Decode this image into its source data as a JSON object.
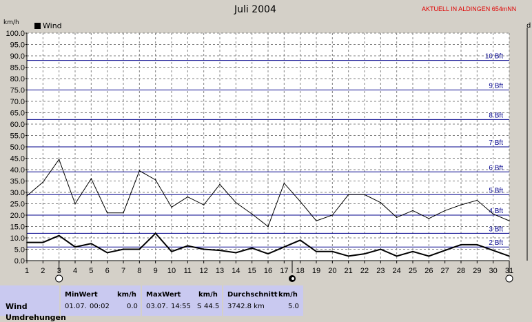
{
  "header": {
    "title": "Juli 2004",
    "station": "AKTUELL IN ALDINGEN 654mNN",
    "unit_left": "km/h",
    "unit_right": "d"
  },
  "chart_data": {
    "type": "line",
    "title": "Juli 2004",
    "ylabel": "km/h",
    "xlabel": "",
    "ylim": [
      0,
      100
    ],
    "y_ticks": [
      "0.0",
      "5.0",
      "10.0",
      "15.0",
      "20.0",
      "25.0",
      "30.0",
      "35.0",
      "40.0",
      "45.0",
      "50.0",
      "55.0",
      "60.0",
      "65.0",
      "70.0",
      "75.0",
      "80.0",
      "85.0",
      "90.0",
      "95.0",
      "100.0"
    ],
    "x": [
      1,
      2,
      3,
      4,
      5,
      6,
      7,
      8,
      9,
      10,
      11,
      12,
      13,
      14,
      15,
      16,
      17,
      18,
      19,
      20,
      21,
      22,
      23,
      24,
      25,
      26,
      27,
      28,
      29,
      30,
      31
    ],
    "grid": true,
    "legend": {
      "position": "top-left",
      "entries": [
        "Wind"
      ]
    },
    "series": [
      {
        "name": "Wind",
        "color": "#000000",
        "values": [
          8,
          8,
          11,
          6,
          7.5,
          3.5,
          5,
          5,
          12,
          4,
          6.5,
          5,
          4.5,
          3.5,
          5.5,
          3,
          6,
          9,
          4,
          4,
          2,
          3,
          5,
          2,
          4,
          2,
          4.5,
          7,
          7,
          4.5,
          2
        ]
      },
      {
        "name": "",
        "color": "#000000",
        "values": [
          28.5,
          34.5,
          44.5,
          25,
          36,
          21,
          21,
          39.5,
          35.5,
          23.5,
          28,
          24.5,
          33.5,
          25.5,
          20.5,
          15,
          34,
          26,
          17.5,
          20,
          29,
          29,
          25.5,
          19,
          22,
          18.5,
          22,
          24.5,
          26.5,
          20.5,
          17.5
        ]
      }
    ],
    "beaufort_lines": [
      {
        "label": "2 Bft",
        "value": 6
      },
      {
        "label": "3 Bft",
        "value": 12
      },
      {
        "label": "4 Bft",
        "value": 20
      },
      {
        "label": "5 Bft",
        "value": 29
      },
      {
        "label": "6 Bft",
        "value": 39
      },
      {
        "label": "7 Bft",
        "value": 50
      },
      {
        "label": "8 Bft",
        "value": 62
      },
      {
        "label": "9 Bft",
        "value": 75
      },
      {
        "label": "10 Bft",
        "value": 88
      }
    ],
    "moon_phases": [
      {
        "day": 3,
        "phase": "new"
      },
      {
        "day": 17.5,
        "phase": "full"
      },
      {
        "day": 31,
        "phase": "last-quarter"
      }
    ]
  },
  "stats": {
    "row_label": "Wind",
    "row_label_2": "Umdrehungen",
    "min": {
      "header": "MinWert",
      "unit": "km/h",
      "date": "01.07.",
      "time": "00:02",
      "value": "0.0"
    },
    "max": {
      "header": "MaxWert",
      "unit": "km/h",
      "date": "03.07.",
      "time": "14:55",
      "dir": "S",
      "value": "44.5"
    },
    "avg": {
      "header": "Durchschnitt",
      "unit": "km/h",
      "distance": "3742.8 km",
      "value": "5.0"
    }
  }
}
